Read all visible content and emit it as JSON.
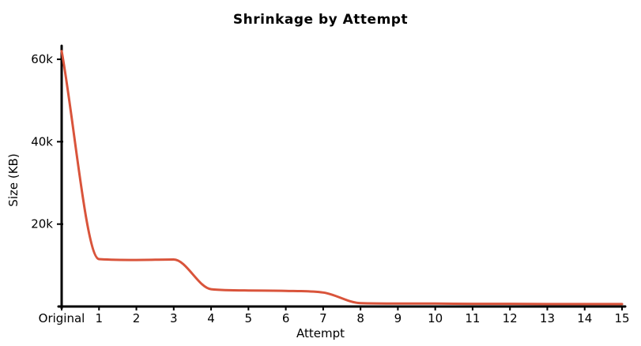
{
  "chart_data": {
    "type": "line",
    "title": "Shrinkage by Attempt",
    "xlabel": "Attempt",
    "ylabel": "Size (KB)",
    "categories": [
      "Original",
      "1",
      "2",
      "3",
      "4",
      "5",
      "6",
      "7",
      "8",
      "9",
      "10",
      "11",
      "12",
      "13",
      "14",
      "15"
    ],
    "values": [
      62000,
      11500,
      11300,
      11400,
      4200,
      3900,
      3800,
      3400,
      800,
      700,
      700,
      650,
      650,
      600,
      600,
      600
    ],
    "ylim": [
      0,
      65000
    ],
    "yticks": [
      {
        "value": 20000,
        "label": "20k"
      },
      {
        "value": 40000,
        "label": "40k"
      },
      {
        "value": 60000,
        "label": "60k"
      }
    ],
    "line_color": "#d9543b",
    "axis_color": "#000000",
    "background": "#ffffff",
    "grid": false,
    "legend": false,
    "style": "hand-drawn"
  }
}
